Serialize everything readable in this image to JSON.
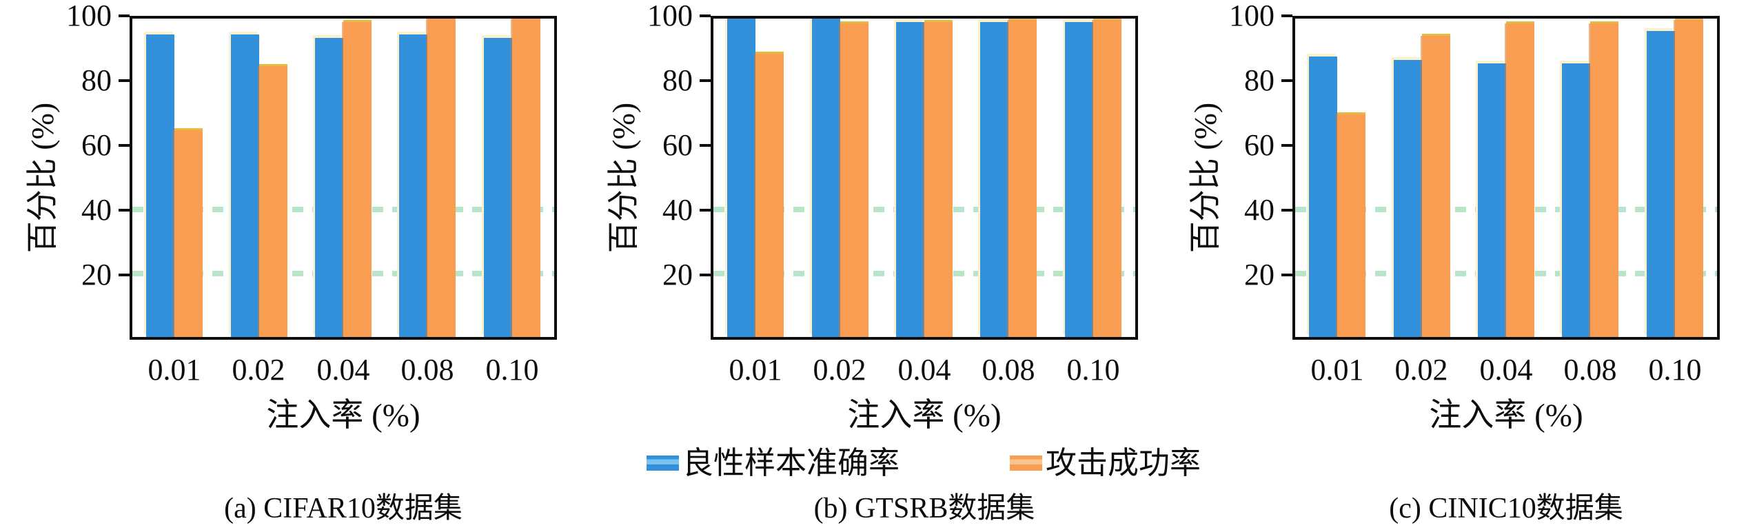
{
  "figure": {
    "background": "#ffffff",
    "frame_color": "#0d0d0d",
    "grid": {
      "style": "dashed-overlay",
      "dash_levels_green": [
        20,
        40
      ],
      "dash_levels_white": [
        60,
        80
      ]
    }
  },
  "legend": {
    "items": [
      {
        "label": "良性样本准确率",
        "color": "#3391DB",
        "stripe": "#7CC2F0"
      },
      {
        "label": "攻击成功率",
        "color": "#F99D52",
        "stripe": "#FBC48E"
      }
    ]
  },
  "chart_data": [
    {
      "type": "bar",
      "title": "(a) CIFAR10数据集",
      "xlabel": "注入率 (%)",
      "ylabel": "百分比 (%)",
      "categories": [
        "0.01",
        "0.02",
        "0.04",
        "0.08",
        "0.10"
      ],
      "series": [
        {
          "name": "良性样本准确率",
          "color": "#3391DB",
          "values": [
            95,
            95,
            94,
            95,
            94
          ]
        },
        {
          "name": "攻击成功率",
          "color": "#F99D52",
          "values": [
            65,
            85,
            99,
            100,
            100
          ]
        }
      ],
      "ylim": [
        0,
        100
      ],
      "yticks": [
        20,
        40,
        60,
        80,
        100
      ],
      "legend_position": "below-middle-plot",
      "grid": "dashed-overlay"
    },
    {
      "type": "bar",
      "title": "(b) GTSRB数据集",
      "xlabel": "注入率 (%)",
      "ylabel": "百分比 (%)",
      "categories": [
        "0.01",
        "0.02",
        "0.04",
        "0.08",
        "0.10"
      ],
      "series": [
        {
          "name": "良性样本准确率",
          "color": "#3391DB",
          "values": [
            100,
            100,
            99,
            99,
            99
          ]
        },
        {
          "name": "攻击成功率",
          "color": "#F99D52",
          "values": [
            89,
            98.5,
            99,
            99.5,
            99.5
          ]
        }
      ],
      "ylim": [
        0,
        100
      ],
      "yticks": [
        20,
        40,
        60,
        80,
        100
      ],
      "legend_position": "below-middle-plot",
      "grid": "dashed-overlay"
    },
    {
      "type": "bar",
      "title": "(c) CINIC10数据集",
      "xlabel": "注入率 (%)",
      "ylabel": "百分比 (%)",
      "categories": [
        "0.01",
        "0.02",
        "0.04",
        "0.08",
        "0.10"
      ],
      "series": [
        {
          "name": "良性样本准确率",
          "color": "#3391DB",
          "values": [
            88,
            87,
            86,
            86,
            96
          ]
        },
        {
          "name": "攻击成功率",
          "color": "#F99D52",
          "values": [
            70,
            94.5,
            98.5,
            98.5,
            99.5
          ]
        }
      ],
      "ylim": [
        0,
        100
      ],
      "yticks": [
        20,
        40,
        60,
        80,
        100
      ],
      "legend_position": "below-middle-plot",
      "grid": "dashed-overlay"
    }
  ]
}
